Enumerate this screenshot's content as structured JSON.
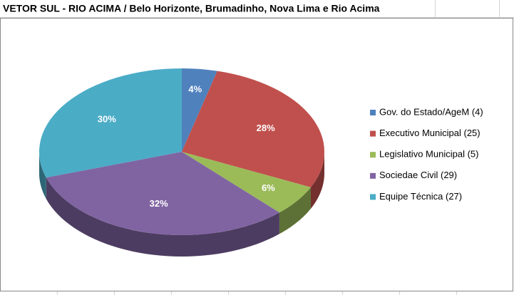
{
  "chart_data": {
    "type": "pie",
    "title": "VETOR SUL - RIO ACIMA / Belo Horizonte, Brumadinho, Nova Lima e Rio Acima",
    "categories": [
      "Gov. do Estado/AgeM (4)",
      "Executivo Municipal (25)",
      "Legislativo Municipal (5)",
      "Sociedae Civil (29)",
      "Equipe Técnica (27)"
    ],
    "values": [
      4,
      28,
      6,
      32,
      30
    ],
    "value_labels": [
      "4%",
      "28%",
      "6%",
      "32%",
      "30%"
    ],
    "colors": [
      "#4f81bd",
      "#c0504d",
      "#9bbb59",
      "#8064a2",
      "#4bacc6"
    ],
    "legend": "right"
  }
}
